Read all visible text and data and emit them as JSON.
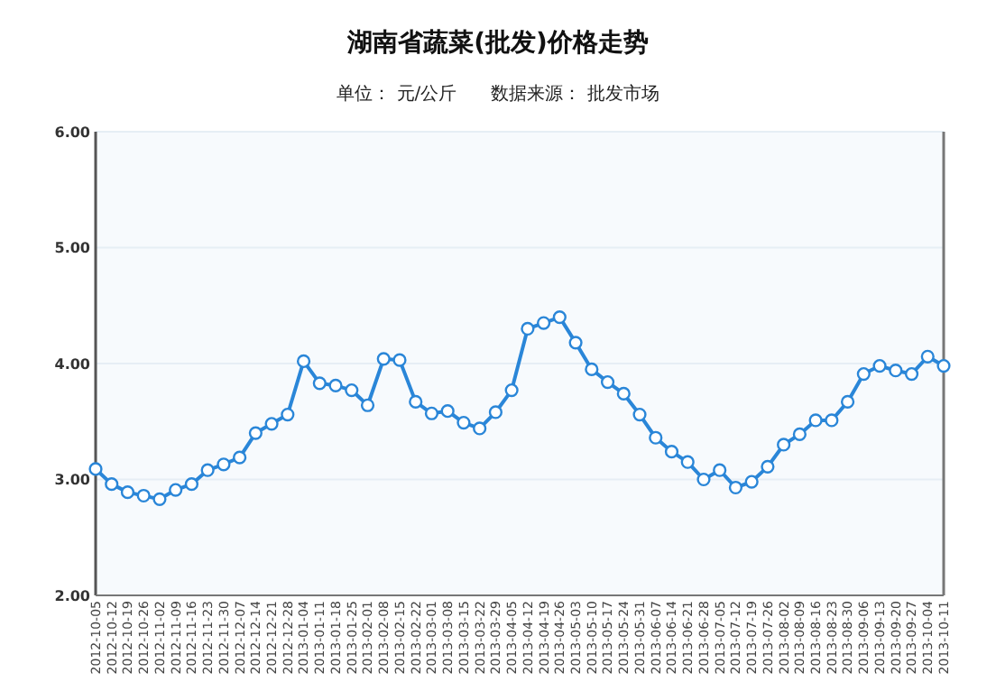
{
  "chart_data": {
    "type": "line",
    "title": "湖南省蔬菜(批发)价格走势",
    "subtitle": "单位： 元/公斤      数据来源： 批发市场",
    "categories": [
      "2012-10-05",
      "2012-10-12",
      "2012-10-19",
      "2012-10-26",
      "2012-11-02",
      "2012-11-09",
      "2012-11-16",
      "2012-11-23",
      "2012-11-30",
      "2012-12-07",
      "2012-12-14",
      "2012-12-21",
      "2012-12-28",
      "2013-01-04",
      "2013-01-11",
      "2013-01-18",
      "2013-01-25",
      "2013-02-01",
      "2013-02-08",
      "2013-02-15",
      "2013-02-22",
      "2013-03-01",
      "2013-03-08",
      "2013-03-15",
      "2013-03-22",
      "2013-03-29",
      "2013-04-05",
      "2013-04-12",
      "2013-04-19",
      "2013-04-26",
      "2013-05-03",
      "2013-05-10",
      "2013-05-17",
      "2013-05-24",
      "2013-05-31",
      "2013-06-07",
      "2013-06-14",
      "2013-06-21",
      "2013-06-28",
      "2013-07-05",
      "2013-07-12",
      "2013-07-19",
      "2013-07-26",
      "2013-08-02",
      "2013-08-09",
      "2013-08-16",
      "2013-08-23",
      "2013-08-30",
      "2013-09-06",
      "2013-09-13",
      "2013-09-20",
      "2013-09-27",
      "2013-10-04",
      "2013-10-11"
    ],
    "series": [
      {
        "color": "#2a86d8",
        "values": [
          3.09,
          2.96,
          2.89,
          2.86,
          2.83,
          2.91,
          2.96,
          3.08,
          3.13,
          3.19,
          3.4,
          3.48,
          3.56,
          4.02,
          3.83,
          3.81,
          3.77,
          3.64,
          4.04,
          4.03,
          3.67,
          3.57,
          3.59,
          3.49,
          3.44,
          3.58,
          3.77,
          4.3,
          4.35,
          4.4,
          4.18,
          3.95,
          3.84,
          3.74,
          3.56,
          3.36,
          3.24,
          3.15,
          3.0,
          3.08,
          2.93,
          2.98,
          3.11,
          3.3,
          3.39,
          3.51,
          3.51,
          3.67,
          3.91,
          3.98,
          3.94,
          3.91,
          4.06,
          3.98
        ]
      }
    ],
    "ylim": [
      2,
      6
    ],
    "yticks": [
      {
        "value": 2,
        "label": "2.00"
      },
      {
        "value": 3,
        "label": "3.00"
      },
      {
        "value": 4,
        "label": "4.00"
      },
      {
        "value": 5,
        "label": "5.00"
      },
      {
        "value": 6,
        "label": "6.00"
      }
    ],
    "grid": "y",
    "marker": "circle",
    "line_style": "solid"
  }
}
